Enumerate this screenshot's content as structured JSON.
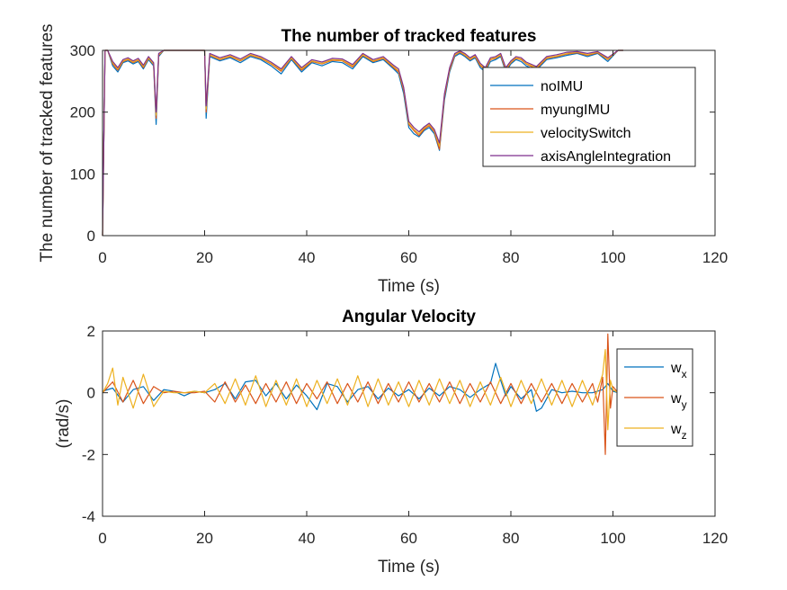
{
  "chart_data": [
    {
      "type": "line",
      "title": "The number of tracked features",
      "xlabel": "Time (s)",
      "ylabel": "The number of tracked features",
      "xlim": [
        0,
        120
      ],
      "ylim": [
        0,
        300
      ],
      "xticks": [
        0,
        20,
        40,
        60,
        80,
        100,
        120
      ],
      "yticks": [
        0,
        100,
        200,
        300
      ],
      "grid": false,
      "legend_position": "top-right",
      "series": [
        {
          "name": "noIMU",
          "color": "#0072BD",
          "x": [
            0,
            0.5,
            1,
            2,
            3,
            4,
            5,
            6,
            7,
            8,
            9,
            10,
            10.5,
            11,
            12,
            14,
            16,
            18,
            20,
            20.3,
            21,
            23,
            25,
            27,
            29,
            31,
            33,
            35,
            37,
            39,
            41,
            43,
            45,
            47,
            49,
            51,
            53,
            55,
            57,
            58,
            59,
            60,
            61,
            62,
            63,
            64,
            65,
            66,
            67,
            68,
            69,
            70,
            71,
            72,
            73,
            74,
            75,
            76,
            77,
            78,
            79,
            80,
            81,
            82,
            83,
            85,
            87,
            89,
            91,
            93,
            95,
            97,
            99,
            101,
            102
          ],
          "y": [
            0,
            300,
            300,
            275,
            265,
            280,
            283,
            278,
            282,
            270,
            285,
            275,
            180,
            290,
            300,
            300,
            300,
            300,
            300,
            190,
            290,
            283,
            288,
            280,
            290,
            285,
            275,
            262,
            285,
            265,
            280,
            275,
            282,
            280,
            270,
            290,
            280,
            285,
            270,
            262,
            230,
            175,
            165,
            160,
            170,
            175,
            165,
            138,
            220,
            265,
            290,
            295,
            290,
            283,
            288,
            272,
            265,
            282,
            285,
            290,
            265,
            278,
            285,
            282,
            275,
            268,
            285,
            288,
            292,
            295,
            290,
            295,
            282,
            300,
            300
          ]
        },
        {
          "name": "myungIMU",
          "color": "#D95319",
          "x": [
            0,
            0.5,
            1,
            2,
            3,
            4,
            5,
            6,
            7,
            8,
            9,
            10,
            10.5,
            11,
            12,
            14,
            16,
            18,
            20,
            20.3,
            21,
            23,
            25,
            27,
            29,
            31,
            33,
            35,
            37,
            39,
            41,
            43,
            45,
            47,
            49,
            51,
            53,
            55,
            57,
            58,
            59,
            60,
            61,
            62,
            63,
            64,
            65,
            66,
            67,
            68,
            69,
            70,
            71,
            72,
            73,
            74,
            75,
            76,
            77,
            78,
            79,
            80,
            81,
            82,
            83,
            85,
            87,
            89,
            91,
            93,
            95,
            97,
            99,
            101,
            102
          ],
          "y": [
            0,
            300,
            300,
            278,
            268,
            282,
            285,
            280,
            284,
            272,
            287,
            277,
            190,
            292,
            300,
            300,
            300,
            300,
            300,
            200,
            292,
            285,
            290,
            283,
            292,
            287,
            278,
            266,
            287,
            268,
            282,
            278,
            284,
            283,
            273,
            292,
            282,
            287,
            272,
            265,
            235,
            180,
            170,
            162,
            172,
            178,
            168,
            140,
            225,
            268,
            292,
            297,
            292,
            285,
            290,
            275,
            268,
            285,
            287,
            292,
            268,
            280,
            287,
            285,
            278,
            270,
            287,
            290,
            294,
            296,
            292,
            296,
            285,
            300,
            300
          ]
        },
        {
          "name": "velocitySwitch",
          "color": "#EDB120",
          "x": [
            0,
            0.5,
            1,
            2,
            3,
            4,
            5,
            6,
            7,
            8,
            9,
            10,
            10.5,
            11,
            12,
            14,
            16,
            18,
            20,
            20.3,
            21,
            23,
            25,
            27,
            29,
            31,
            33,
            35,
            37,
            39,
            41,
            43,
            45,
            47,
            49,
            51,
            53,
            55,
            57,
            58,
            59,
            60,
            61,
            62,
            63,
            64,
            65,
            66,
            67,
            68,
            69,
            70,
            71,
            72,
            73,
            74,
            75,
            76,
            77,
            78,
            79,
            80,
            81,
            82,
            83,
            85,
            87,
            89,
            91,
            93,
            95,
            97,
            99,
            101,
            102
          ],
          "y": [
            0,
            300,
            300,
            280,
            270,
            283,
            286,
            281,
            285,
            274,
            288,
            278,
            195,
            293,
            300,
            300,
            300,
            300,
            300,
            205,
            293,
            286,
            291,
            284,
            293,
            288,
            279,
            268,
            288,
            270,
            283,
            279,
            285,
            284,
            275,
            293,
            283,
            288,
            274,
            267,
            238,
            182,
            172,
            165,
            174,
            180,
            170,
            145,
            228,
            270,
            293,
            298,
            293,
            286,
            291,
            277,
            270,
            286,
            288,
            293,
            270,
            281,
            288,
            286,
            279,
            272,
            288,
            291,
            295,
            297,
            293,
            297,
            286,
            300,
            300
          ]
        },
        {
          "name": "axisAngleIntegration",
          "color": "#7E2F8E",
          "x": [
            0,
            0.5,
            1,
            2,
            3,
            4,
            5,
            6,
            7,
            8,
            9,
            10,
            10.5,
            11,
            12,
            14,
            16,
            18,
            20,
            20.3,
            21,
            23,
            25,
            27,
            29,
            31,
            33,
            35,
            37,
            39,
            41,
            43,
            45,
            47,
            49,
            51,
            53,
            55,
            57,
            58,
            59,
            60,
            61,
            62,
            63,
            64,
            65,
            66,
            67,
            68,
            69,
            70,
            71,
            72,
            73,
            74,
            75,
            76,
            77,
            78,
            79,
            80,
            81,
            82,
            83,
            85,
            87,
            89,
            91,
            93,
            95,
            97,
            99,
            101,
            102
          ],
          "y": [
            0,
            300,
            300,
            282,
            272,
            285,
            288,
            283,
            287,
            276,
            290,
            280,
            200,
            295,
            300,
            300,
            300,
            300,
            300,
            210,
            295,
            288,
            293,
            286,
            295,
            290,
            281,
            270,
            290,
            272,
            285,
            281,
            287,
            286,
            277,
            295,
            285,
            290,
            276,
            270,
            240,
            185,
            175,
            168,
            176,
            182,
            172,
            150,
            230,
            272,
            295,
            299,
            295,
            288,
            293,
            279,
            272,
            288,
            290,
            295,
            272,
            283,
            290,
            288,
            281,
            274,
            290,
            293,
            297,
            298,
            295,
            298,
            288,
            300,
            300
          ]
        }
      ]
    },
    {
      "type": "line",
      "title": "Angular Velocity",
      "xlabel": "Time (s)",
      "ylabel": "(rad/s)",
      "xlim": [
        0,
        120
      ],
      "ylim": [
        -4,
        2
      ],
      "xticks": [
        0,
        20,
        40,
        60,
        80,
        100,
        120
      ],
      "yticks": [
        -4,
        -2,
        0,
        2
      ],
      "grid": false,
      "legend_position": "top-right",
      "series": [
        {
          "name": "w",
          "subscript": "x",
          "color": "#0072BD",
          "x": [
            0,
            2,
            4,
            6,
            8,
            10,
            12,
            14,
            16,
            18,
            20,
            22,
            24,
            26,
            28,
            30,
            32,
            34,
            36,
            38,
            40,
            42,
            44,
            46,
            48,
            50,
            52,
            54,
            56,
            58,
            60,
            62,
            64,
            66,
            68,
            70,
            72,
            74,
            76,
            77,
            78,
            79,
            80,
            82,
            84,
            85,
            86,
            88,
            90,
            92,
            94,
            96,
            98,
            99,
            100,
            101,
            102
          ],
          "y": [
            0.05,
            0.15,
            -0.3,
            0.1,
            0.2,
            -0.25,
            0.1,
            0.05,
            -0.1,
            0.05,
            0.0,
            0.1,
            0.3,
            -0.2,
            0.35,
            0.4,
            -0.1,
            0.3,
            -0.2,
            0.25,
            -0.1,
            -0.55,
            0.3,
            0.2,
            -0.3,
            0.1,
            0.2,
            -0.2,
            0.15,
            -0.1,
            0.1,
            -0.2,
            0.15,
            -0.1,
            0.2,
            0.1,
            -0.15,
            0.1,
            0.3,
            0.95,
            0.4,
            -0.1,
            0.2,
            -0.2,
            0.1,
            -0.6,
            -0.5,
            0.1,
            0.0,
            0.05,
            0.0,
            0.0,
            0.1,
            0.3,
            0.05,
            0.0,
            0.0
          ]
        },
        {
          "name": "w",
          "subscript": "y",
          "color": "#D95319",
          "x": [
            0,
            2,
            4,
            6,
            8,
            10,
            12,
            14,
            16,
            18,
            20,
            22,
            24,
            26,
            28,
            30,
            32,
            34,
            36,
            38,
            40,
            42,
            44,
            46,
            48,
            50,
            52,
            54,
            56,
            58,
            60,
            62,
            64,
            66,
            68,
            70,
            72,
            74,
            76,
            78,
            80,
            82,
            84,
            86,
            88,
            90,
            92,
            94,
            96,
            97,
            98,
            98.5,
            99,
            99.5,
            100,
            101,
            102
          ],
          "y": [
            0.0,
            0.35,
            -0.3,
            0.4,
            -0.35,
            0.2,
            0.0,
            0.05,
            0.0,
            0.0,
            0.05,
            -0.3,
            0.35,
            -0.3,
            0.25,
            -0.35,
            0.3,
            -0.3,
            0.35,
            -0.35,
            0.3,
            -0.2,
            0.35,
            -0.35,
            0.3,
            -0.3,
            0.35,
            -0.35,
            0.3,
            -0.3,
            0.35,
            -0.3,
            0.3,
            -0.3,
            0.35,
            -0.35,
            0.3,
            -0.3,
            0.35,
            -0.35,
            0.3,
            -0.35,
            0.3,
            -0.3,
            0.3,
            -0.35,
            0.3,
            -0.3,
            0.3,
            -0.3,
            0.5,
            -2.0,
            1.9,
            -0.5,
            0.2,
            0.0,
            0.0
          ]
        },
        {
          "name": "w",
          "subscript": "z",
          "color": "#EDB120",
          "x": [
            0,
            1,
            2,
            3,
            4,
            6,
            8,
            10,
            12,
            14,
            16,
            18,
            20,
            22,
            24,
            26,
            28,
            30,
            32,
            34,
            36,
            38,
            40,
            42,
            44,
            46,
            48,
            50,
            52,
            54,
            56,
            58,
            60,
            62,
            64,
            66,
            68,
            70,
            72,
            74,
            76,
            78,
            80,
            82,
            84,
            86,
            88,
            90,
            92,
            94,
            96,
            98,
            98.5,
            99,
            99.5,
            100,
            101,
            102
          ],
          "y": [
            0.0,
            0.3,
            0.8,
            -0.4,
            0.5,
            -0.5,
            0.6,
            -0.45,
            0.05,
            0.0,
            0.0,
            0.05,
            0.0,
            0.3,
            -0.35,
            0.45,
            -0.4,
            0.55,
            -0.45,
            0.4,
            -0.4,
            0.45,
            -0.45,
            0.4,
            -0.35,
            0.45,
            -0.4,
            0.55,
            -0.45,
            0.45,
            -0.4,
            0.35,
            -0.45,
            0.4,
            -0.4,
            0.45,
            -0.35,
            0.4,
            -0.45,
            0.35,
            -0.4,
            0.5,
            -0.45,
            0.4,
            -0.35,
            0.45,
            -0.4,
            0.4,
            -0.45,
            0.4,
            -0.4,
            0.6,
            1.4,
            -1.2,
            0.4,
            0.1,
            0.0,
            0.0
          ]
        }
      ]
    }
  ]
}
